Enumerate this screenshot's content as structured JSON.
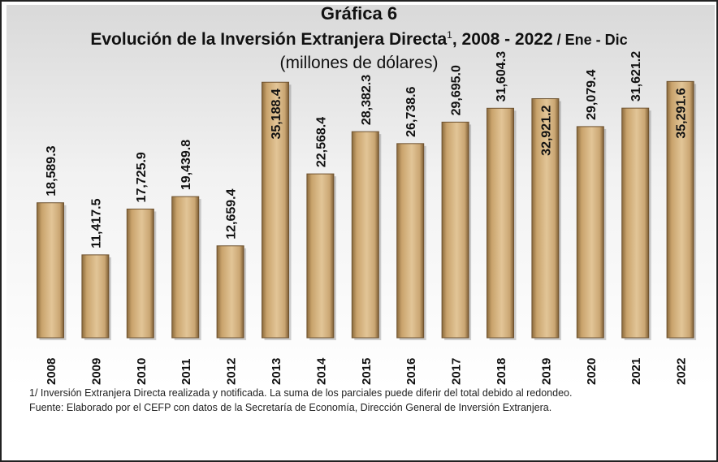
{
  "title": {
    "line1": "Gráfica 6",
    "line2_main": "Evolución de la Inversión Extranjera Directa",
    "line2_sup": "1",
    "line2_years": ", 2008 - 2022",
    "line2_period": " / Ene - Dic",
    "subtitle": "(millones de dólares)"
  },
  "chart_data": {
    "type": "bar",
    "title": "Evolución de la Inversión Extranjera Directa, 2008 - 2022 / Ene - Dic",
    "ylabel": "millones de dólares",
    "xlabel": "",
    "ylim": [
      0,
      36000
    ],
    "categories": [
      "2008",
      "2009",
      "2010",
      "2011",
      "2012",
      "2013",
      "2014",
      "2015",
      "2016",
      "2017",
      "2018",
      "2019",
      "2020",
      "2021",
      "2022"
    ],
    "values": [
      18589.3,
      11417.5,
      17725.9,
      19439.8,
      12659.4,
      35188.4,
      22568.4,
      28382.3,
      26738.6,
      29695.0,
      31604.3,
      32921.2,
      29079.4,
      31621.2,
      35291.6
    ],
    "labels": [
      "18,589.3",
      "11,417.5",
      "17,725.9",
      "19,439.8",
      "12,659.4",
      "35,188.4",
      "22,568.4",
      "28,382.3",
      "26,738.6",
      "29,695.0",
      "31,604.3",
      "32,921.2",
      "29,079.4",
      "31,621.2",
      "35,291.6"
    ],
    "bar_color": "#d2b48c",
    "grid": false,
    "legend": "none"
  },
  "footnote": {
    "note1": "1/ Inversión Extranjera Directa realizada y notificada. La suma de los parciales puede diferir del total debido al redondeo.",
    "source": "Fuente: Elaborado por el CEFP con datos de la Secretaría de Economía, Dirección General de Inversión Extranjera."
  }
}
